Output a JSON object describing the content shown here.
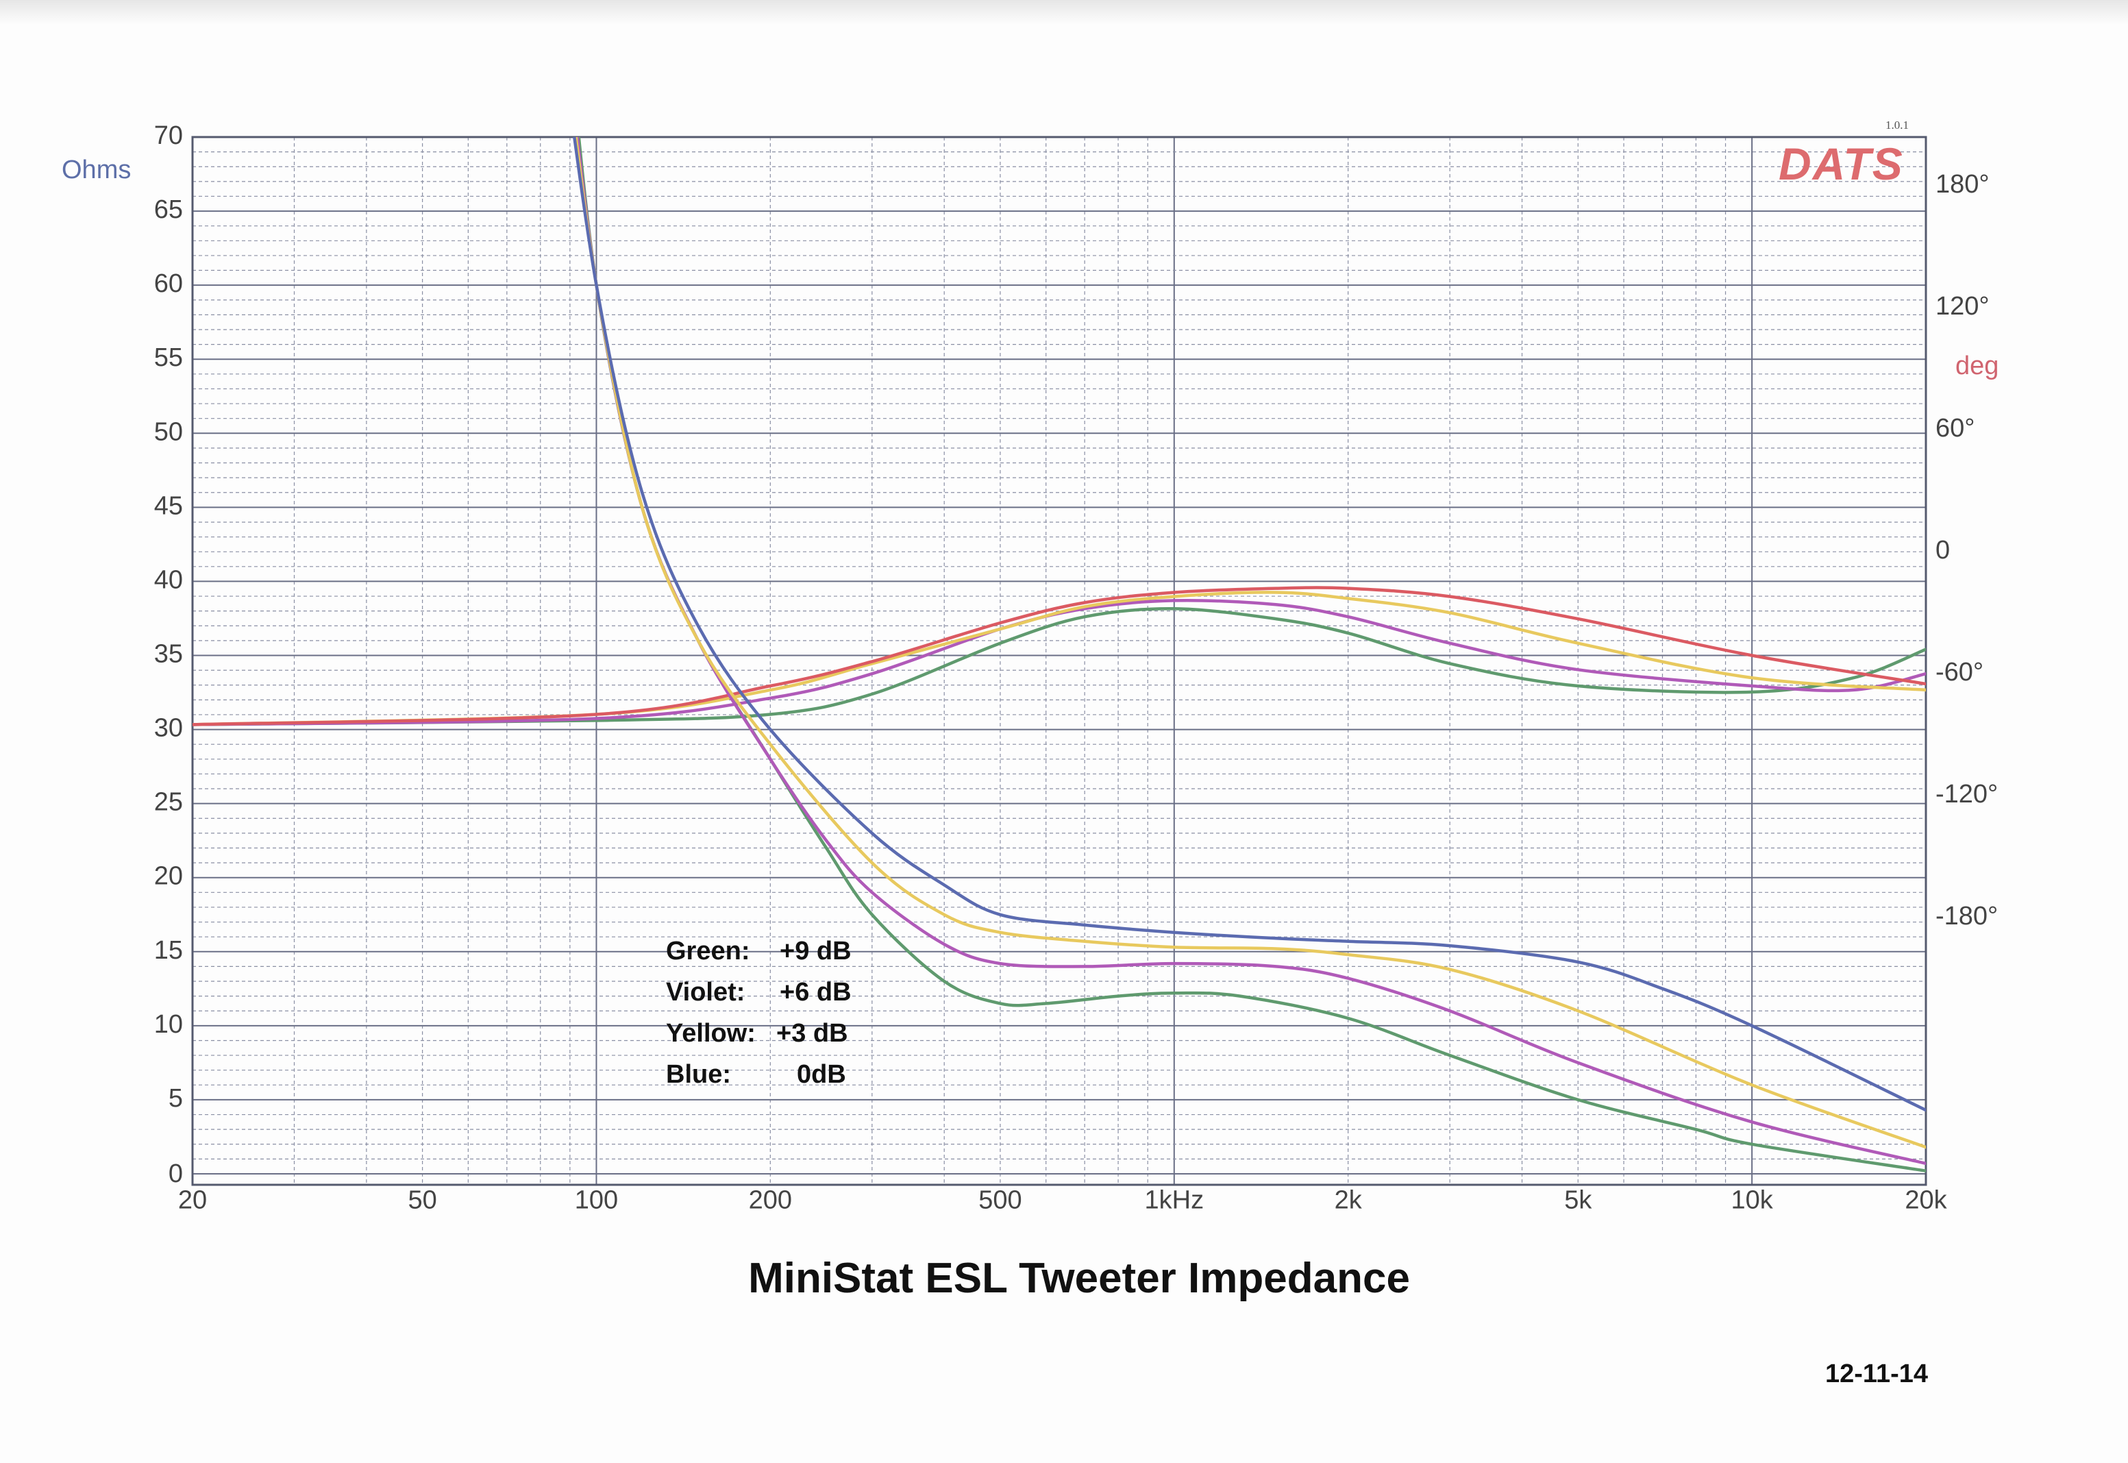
{
  "chart_data": {
    "type": "line",
    "title": "MiniStat ESL Tweeter Impedance",
    "date": "12-11-14",
    "logo": "DATS",
    "version": "1.0.1",
    "x_scale": "log",
    "xlim": [
      20,
      20000
    ],
    "x_ticks": [
      20,
      50,
      100,
      200,
      500,
      1000,
      2000,
      5000,
      10000,
      20000
    ],
    "x_tick_labels": [
      "20",
      "50",
      "100",
      "200",
      "500",
      "1kHz",
      "2k",
      "5k",
      "10k",
      "20k"
    ],
    "ylabel": "Ohms",
    "ylim": [
      0,
      70
    ],
    "y_ticks": [
      0,
      5,
      10,
      15,
      20,
      25,
      30,
      35,
      40,
      45,
      50,
      55,
      60,
      65,
      70
    ],
    "y2label": "deg",
    "y2lim": [
      -306,
      204
    ],
    "y2_ticks": [
      180,
      120,
      60,
      0,
      -60,
      -120,
      -180
    ],
    "y2_tick_labels": [
      "180°",
      "120°",
      "60°",
      "0",
      "-60°",
      "-120°",
      "-180°"
    ],
    "grid": true,
    "legend_text": [
      {
        "label": "Green:",
        "value": "+9 dB"
      },
      {
        "label": "Violet:",
        "value": "+6 dB"
      },
      {
        "label": "Yellow:",
        "value": "+3 dB"
      },
      {
        "label": "Blue:",
        "value": "0dB"
      }
    ],
    "impedance_series": [
      {
        "name": "Green",
        "color": "#5f9a6e",
        "points": [
          [
            89,
            78
          ],
          [
            100,
            60
          ],
          [
            120,
            45
          ],
          [
            150,
            36
          ],
          [
            200,
            28
          ],
          [
            250,
            22
          ],
          [
            300,
            17.5
          ],
          [
            400,
            13
          ],
          [
            500,
            11.5
          ],
          [
            600,
            11.5
          ],
          [
            800,
            12
          ],
          [
            1000,
            12.2
          ],
          [
            1300,
            12
          ],
          [
            2000,
            10.5
          ],
          [
            3000,
            8
          ],
          [
            5000,
            5
          ],
          [
            8000,
            3
          ],
          [
            10000,
            2
          ],
          [
            20000,
            0.2
          ]
        ]
      },
      {
        "name": "Violet",
        "color": "#b05ab8",
        "points": [
          [
            88,
            78
          ],
          [
            100,
            60
          ],
          [
            120,
            45
          ],
          [
            150,
            36
          ],
          [
            200,
            28
          ],
          [
            250,
            22.5
          ],
          [
            300,
            19
          ],
          [
            400,
            15.5
          ],
          [
            500,
            14.2
          ],
          [
            700,
            14
          ],
          [
            1000,
            14.2
          ],
          [
            1500,
            14
          ],
          [
            2000,
            13.2
          ],
          [
            3000,
            11
          ],
          [
            5000,
            7.5
          ],
          [
            10000,
            3.5
          ],
          [
            20000,
            0.7
          ]
        ]
      },
      {
        "name": "Yellow",
        "color": "#e8c95e",
        "points": [
          [
            87,
            78
          ],
          [
            100,
            60
          ],
          [
            120,
            45
          ],
          [
            150,
            36
          ],
          [
            200,
            29
          ],
          [
            300,
            21
          ],
          [
            400,
            17.5
          ],
          [
            500,
            16.3
          ],
          [
            700,
            15.7
          ],
          [
            1000,
            15.3
          ],
          [
            1500,
            15.2
          ],
          [
            2000,
            14.8
          ],
          [
            3000,
            13.8
          ],
          [
            5000,
            11
          ],
          [
            10000,
            6
          ],
          [
            20000,
            1.8
          ]
        ]
      },
      {
        "name": "Blue",
        "color": "#5b6bb0",
        "points": [
          [
            86,
            78
          ],
          [
            100,
            60
          ],
          [
            120,
            46
          ],
          [
            150,
            37
          ],
          [
            200,
            30
          ],
          [
            300,
            23
          ],
          [
            400,
            19.5
          ],
          [
            500,
            17.5
          ],
          [
            700,
            16.8
          ],
          [
            1000,
            16.3
          ],
          [
            1500,
            15.9
          ],
          [
            2000,
            15.7
          ],
          [
            3000,
            15.4
          ],
          [
            5000,
            14.3
          ],
          [
            7000,
            12.5
          ],
          [
            10000,
            10
          ],
          [
            20000,
            4.3
          ]
        ]
      }
    ],
    "phase_series": [
      {
        "name": "Green",
        "color": "#5f9a6e",
        "points": [
          [
            20,
            -85
          ],
          [
            100,
            -83
          ],
          [
            200,
            -80
          ],
          [
            300,
            -70
          ],
          [
            500,
            -45
          ],
          [
            700,
            -32
          ],
          [
            1000,
            -28
          ],
          [
            1500,
            -33
          ],
          [
            2000,
            -40
          ],
          [
            3000,
            -55
          ],
          [
            5000,
            -66
          ],
          [
            10000,
            -69
          ],
          [
            15000,
            -62
          ],
          [
            20000,
            -48
          ]
        ]
      },
      {
        "name": "Violet",
        "color": "#b05ab8",
        "points": [
          [
            20,
            -85
          ],
          [
            100,
            -82
          ],
          [
            200,
            -72
          ],
          [
            300,
            -60
          ],
          [
            500,
            -38
          ],
          [
            700,
            -28
          ],
          [
            1000,
            -24
          ],
          [
            1500,
            -26
          ],
          [
            2000,
            -32
          ],
          [
            3000,
            -45
          ],
          [
            5000,
            -58
          ],
          [
            10000,
            -66
          ],
          [
            15000,
            -68
          ],
          [
            20000,
            -60
          ]
        ]
      },
      {
        "name": "Yellow",
        "color": "#e8c95e",
        "points": [
          [
            20,
            -85
          ],
          [
            100,
            -80
          ],
          [
            200,
            -68
          ],
          [
            300,
            -55
          ],
          [
            500,
            -38
          ],
          [
            700,
            -27
          ],
          [
            1000,
            -22
          ],
          [
            1500,
            -20
          ],
          [
            2000,
            -23
          ],
          [
            3000,
            -30
          ],
          [
            5000,
            -45
          ],
          [
            10000,
            -62
          ],
          [
            20000,
            -68
          ]
        ]
      },
      {
        "name": "Red",
        "color": "#db5a62",
        "points": [
          [
            20,
            -85
          ],
          [
            100,
            -80
          ],
          [
            200,
            -66
          ],
          [
            300,
            -54
          ],
          [
            500,
            -35
          ],
          [
            700,
            -25
          ],
          [
            1000,
            -20
          ],
          [
            1500,
            -18
          ],
          [
            2000,
            -18
          ],
          [
            3000,
            -22
          ],
          [
            5000,
            -33
          ],
          [
            10000,
            -51
          ],
          [
            20000,
            -65
          ]
        ]
      }
    ]
  }
}
